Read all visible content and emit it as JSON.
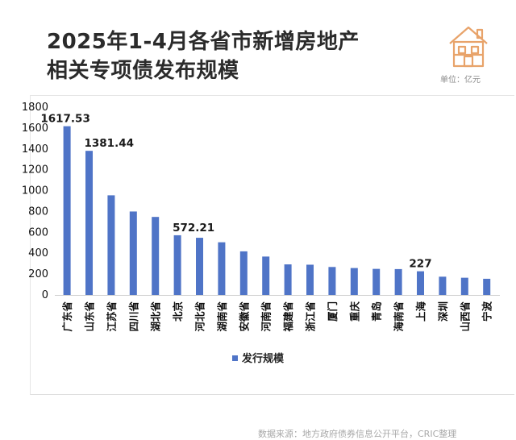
{
  "title_line1": "2025年1-4月各省市新增房地产",
  "title_line2": "相关专项债发布规模",
  "unit_label": "单位：亿元",
  "source_text": "数据来源：地方政府债券信息公开平台，CRIC整理",
  "colors": {
    "bar": "#4f74c7",
    "title": "#2b2b2b",
    "logo": "#e8a36a"
  },
  "chart_data": {
    "type": "bar",
    "categories": [
      "广东省",
      "山东省",
      "江苏省",
      "四川省",
      "湖北省",
      "北京",
      "河北省",
      "湖南省",
      "安徽省",
      "河南省",
      "福建省",
      "浙江省",
      "厦门",
      "重庆",
      "青岛",
      "海南省",
      "上海",
      "深圳",
      "山西省",
      "宁波"
    ],
    "series": [
      {
        "name": "发行规模",
        "values": [
          1617.53,
          1381.44,
          955,
          800,
          748,
          572.21,
          548,
          505,
          418,
          368,
          293,
          290,
          268,
          258,
          250,
          248,
          227,
          175,
          165,
          155
        ]
      }
    ],
    "labels": {
      "0": "1617.53",
      "1": "1381.44",
      "5": "572.21",
      "16": "227"
    },
    "yticks": [
      "0",
      "200",
      "400",
      "600",
      "800",
      "1000",
      "1200",
      "1400",
      "1600",
      "1800"
    ],
    "ylim": [
      0,
      1800
    ],
    "legend_position": "bottom-left",
    "grid": false
  }
}
